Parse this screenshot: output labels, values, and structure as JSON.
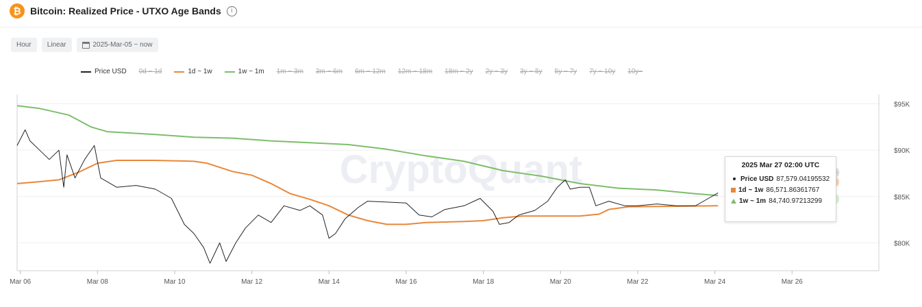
{
  "header": {
    "logo": "₿",
    "title": "Bitcoin: Realized Price - UTXO Age Bands",
    "info_icon": "i"
  },
  "toolbar": {
    "interval": "Hour",
    "scale": "Linear",
    "date_range": "2025-Mar-05 ~ now"
  },
  "legend": [
    {
      "label": "Price USD",
      "color": "#222222",
      "active": true
    },
    {
      "label": "0d ~ 1d",
      "color": "#cccccc",
      "active": false
    },
    {
      "label": "1d ~ 1w",
      "color": "#e8873a",
      "active": true
    },
    {
      "label": "1w ~ 1m",
      "color": "#7cbe6a",
      "active": true
    },
    {
      "label": "1m ~ 3m",
      "color": "#cccccc",
      "active": false
    },
    {
      "label": "3m ~ 6m",
      "color": "#cccccc",
      "active": false
    },
    {
      "label": "6m ~ 12m",
      "color": "#cccccc",
      "active": false
    },
    {
      "label": "12m ~ 18m",
      "color": "#cccccc",
      "active": false
    },
    {
      "label": "18m ~ 2y",
      "color": "#cccccc",
      "active": false
    },
    {
      "label": "2y ~ 3y",
      "color": "#cccccc",
      "active": false
    },
    {
      "label": "3y ~ 5y",
      "color": "#cccccc",
      "active": false
    },
    {
      "label": "5y ~ 7y",
      "color": "#cccccc",
      "active": false
    },
    {
      "label": "7y ~ 10y",
      "color": "#cccccc",
      "active": false
    },
    {
      "label": "10y~",
      "color": "#cccccc",
      "active": false
    }
  ],
  "watermark": "CryptoQuant",
  "tooltip": {
    "title": "2025 Mar 27 02:00 UTC",
    "rows": [
      {
        "label": "Price USD",
        "value": "87,579.04195532"
      },
      {
        "label": "1d ~ 1w",
        "value": "86,571.86361767"
      },
      {
        "label": "1w ~ 1m",
        "value": "84,740.97213299"
      }
    ]
  },
  "chart_data": {
    "type": "line",
    "x_range": [
      "2025-03-05 22:00",
      "2025-03-28 06:00"
    ],
    "ylim": [
      77000,
      96000
    ],
    "x_ticks": [
      {
        "date": "2025-03-06",
        "label": "Mar 06"
      },
      {
        "date": "2025-03-08",
        "label": "Mar 08"
      },
      {
        "date": "2025-03-10",
        "label": "Mar 10"
      },
      {
        "date": "2025-03-12",
        "label": "Mar 12"
      },
      {
        "date": "2025-03-14",
        "label": "Mar 14"
      },
      {
        "date": "2025-03-16",
        "label": "Mar 16"
      },
      {
        "date": "2025-03-18",
        "label": "Mar 18"
      },
      {
        "date": "2025-03-20",
        "label": "Mar 20"
      },
      {
        "date": "2025-03-22",
        "label": "Mar 22"
      },
      {
        "date": "2025-03-24",
        "label": "Mar 24"
      },
      {
        "date": "2025-03-26",
        "label": "Mar 26"
      }
    ],
    "y_ticks": [
      {
        "value": 80000,
        "label": "$80K"
      },
      {
        "value": 85000,
        "label": "$85K"
      },
      {
        "value": 90000,
        "label": "$90K"
      },
      {
        "value": 95000,
        "label": "$95K"
      }
    ],
    "series": [
      {
        "name": "Price USD",
        "color": "#222222",
        "points": [
          [
            "2025-03-05 22:00",
            90500
          ],
          [
            "2025-03-06 03:00",
            92200
          ],
          [
            "2025-03-06 06:00",
            91000
          ],
          [
            "2025-03-06 12:00",
            90000
          ],
          [
            "2025-03-06 18:00",
            89000
          ],
          [
            "2025-03-07 00:00",
            90000
          ],
          [
            "2025-03-07 03:00",
            86000
          ],
          [
            "2025-03-07 05:00",
            89500
          ],
          [
            "2025-03-07 10:00",
            87000
          ],
          [
            "2025-03-07 16:00",
            89000
          ],
          [
            "2025-03-07 22:00",
            90500
          ],
          [
            "2025-03-08 02:00",
            87000
          ],
          [
            "2025-03-08 12:00",
            86000
          ],
          [
            "2025-03-09 00:00",
            86200
          ],
          [
            "2025-03-09 12:00",
            85800
          ],
          [
            "2025-03-09 22:00",
            84800
          ],
          [
            "2025-03-10 06:00",
            82000
          ],
          [
            "2025-03-10 12:00",
            81000
          ],
          [
            "2025-03-10 18:00",
            79500
          ],
          [
            "2025-03-10 22:00",
            77800
          ],
          [
            "2025-03-11 04:00",
            80000
          ],
          [
            "2025-03-11 08:00",
            78000
          ],
          [
            "2025-03-11 14:00",
            80000
          ],
          [
            "2025-03-11 20:00",
            81600
          ],
          [
            "2025-03-12 04:00",
            83000
          ],
          [
            "2025-03-12 12:00",
            82200
          ],
          [
            "2025-03-12 20:00",
            84000
          ],
          [
            "2025-03-13 06:00",
            83500
          ],
          [
            "2025-03-13 12:00",
            84000
          ],
          [
            "2025-03-13 20:00",
            83000
          ],
          [
            "2025-03-14 00:00",
            80500
          ],
          [
            "2025-03-14 04:00",
            81000
          ],
          [
            "2025-03-14 10:00",
            82600
          ],
          [
            "2025-03-14 18:00",
            83800
          ],
          [
            "2025-03-15 00:00",
            84500
          ],
          [
            "2025-03-15 12:00",
            84400
          ],
          [
            "2025-03-16 00:00",
            84300
          ],
          [
            "2025-03-16 08:00",
            83000
          ],
          [
            "2025-03-16 16:00",
            82800
          ],
          [
            "2025-03-17 00:00",
            83600
          ],
          [
            "2025-03-17 12:00",
            84000
          ],
          [
            "2025-03-17 22:00",
            84800
          ],
          [
            "2025-03-18 06:00",
            83400
          ],
          [
            "2025-03-18 10:00",
            82000
          ],
          [
            "2025-03-18 16:00",
            82200
          ],
          [
            "2025-03-18 22:00",
            83000
          ],
          [
            "2025-03-19 08:00",
            83500
          ],
          [
            "2025-03-19 16:00",
            84500
          ],
          [
            "2025-03-19 22:00",
            86000
          ],
          [
            "2025-03-20 03:00",
            86800
          ],
          [
            "2025-03-20 06:00",
            85800
          ],
          [
            "2025-03-20 12:00",
            86000
          ],
          [
            "2025-03-20 18:00",
            86000
          ],
          [
            "2025-03-20 22:00",
            84000
          ],
          [
            "2025-03-21 06:00",
            84500
          ],
          [
            "2025-03-21 16:00",
            84000
          ],
          [
            "2025-03-22 00:00",
            84000
          ],
          [
            "2025-03-22 12:00",
            84200
          ],
          [
            "2025-03-23 00:00",
            84000
          ],
          [
            "2025-03-23 12:00",
            84000
          ],
          [
            "2025-03-23 20:00",
            84800
          ],
          [
            "2025-03-24 02:00",
            85400
          ]
        ]
      },
      {
        "name": "1d ~ 1w",
        "color": "#e8873a",
        "points": [
          [
            "2025-03-05 22:00",
            86400
          ],
          [
            "2025-03-06 12:00",
            86600
          ],
          [
            "2025-03-07 00:00",
            86800
          ],
          [
            "2025-03-07 12:00",
            87600
          ],
          [
            "2025-03-08 00:00",
            88600
          ],
          [
            "2025-03-08 12:00",
            88900
          ],
          [
            "2025-03-09 12:00",
            88900
          ],
          [
            "2025-03-10 12:00",
            88800
          ],
          [
            "2025-03-10 20:00",
            88600
          ],
          [
            "2025-03-11 12:00",
            87700
          ],
          [
            "2025-03-12 00:00",
            87300
          ],
          [
            "2025-03-12 12:00",
            86400
          ],
          [
            "2025-03-13 00:00",
            85300
          ],
          [
            "2025-03-13 12:00",
            84700
          ],
          [
            "2025-03-14 00:00",
            84000
          ],
          [
            "2025-03-14 12:00",
            83000
          ],
          [
            "2025-03-15 00:00",
            82400
          ],
          [
            "2025-03-15 12:00",
            82000
          ],
          [
            "2025-03-16 00:00",
            82000
          ],
          [
            "2025-03-16 12:00",
            82200
          ],
          [
            "2025-03-17 12:00",
            82300
          ],
          [
            "2025-03-18 00:00",
            82400
          ],
          [
            "2025-03-18 12:00",
            82700
          ],
          [
            "2025-03-19 00:00",
            82900
          ],
          [
            "2025-03-19 12:00",
            82900
          ],
          [
            "2025-03-20 12:00",
            82900
          ],
          [
            "2025-03-21 00:00",
            83100
          ],
          [
            "2025-03-21 06:00",
            83600
          ],
          [
            "2025-03-21 18:00",
            83900
          ],
          [
            "2025-03-24 02:00",
            84000
          ]
        ]
      },
      {
        "name": "1w ~ 1m",
        "color": "#7cbe6a",
        "points": [
          [
            "2025-03-05 22:00",
            94800
          ],
          [
            "2025-03-06 12:00",
            94500
          ],
          [
            "2025-03-07 06:00",
            93800
          ],
          [
            "2025-03-07 20:00",
            92500
          ],
          [
            "2025-03-08 06:00",
            92000
          ],
          [
            "2025-03-09 12:00",
            91700
          ],
          [
            "2025-03-10 12:00",
            91400
          ],
          [
            "2025-03-11 12:00",
            91300
          ],
          [
            "2025-03-12 12:00",
            91000
          ],
          [
            "2025-03-13 12:00",
            90800
          ],
          [
            "2025-03-14 12:00",
            90600
          ],
          [
            "2025-03-15 12:00",
            90100
          ],
          [
            "2025-03-16 12:00",
            89400
          ],
          [
            "2025-03-17 12:00",
            88800
          ],
          [
            "2025-03-18 12:00",
            87800
          ],
          [
            "2025-03-19 12:00",
            87200
          ],
          [
            "2025-03-20 12:00",
            86400
          ],
          [
            "2025-03-21 12:00",
            85900
          ],
          [
            "2025-03-22 12:00",
            85700
          ],
          [
            "2025-03-23 12:00",
            85300
          ],
          [
            "2025-03-24 02:00",
            85100
          ]
        ]
      }
    ],
    "hover_markers": {
      "date": "2025-03-27 02:00",
      "values": [
        87579.04195532,
        86571.86361767,
        84740.97213299
      ]
    },
    "grid": true,
    "legend_position": "top"
  }
}
